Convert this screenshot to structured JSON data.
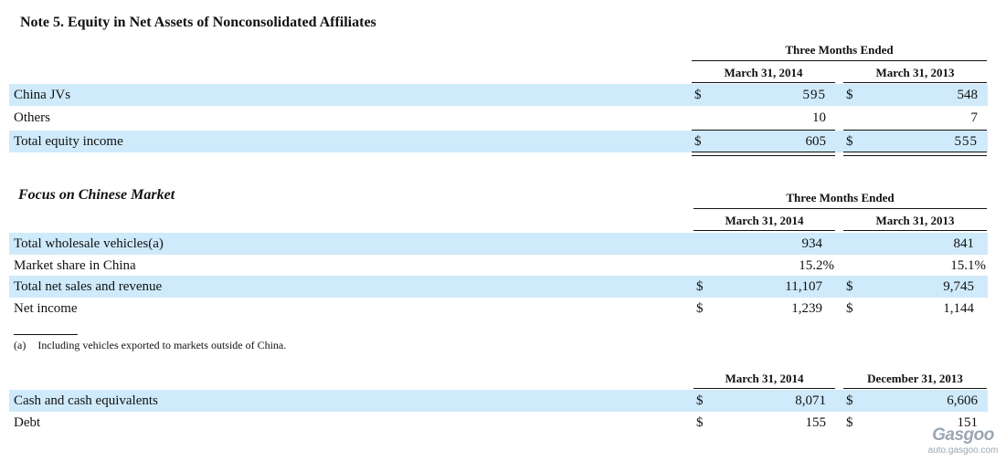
{
  "title": "Note 5. Equity in Net Assets of Nonconsolidated Affiliates",
  "table1": {
    "group_header": "Three Months Ended",
    "col1": "March 31, 2014",
    "col2": "March 31, 2013",
    "rows": [
      {
        "label": "China JVs",
        "cur1": "$",
        "v1": "595",
        "cur2": "$",
        "v2": "548"
      },
      {
        "label": "Others",
        "cur1": "",
        "v1": "10",
        "cur2": "",
        "v2": "7"
      },
      {
        "label": "Total equity income",
        "cur1": "$",
        "v1": "605",
        "cur2": "$",
        "v2": "555"
      }
    ]
  },
  "section2_title": "Focus on Chinese Market",
  "table2": {
    "group_header": "Three Months Ended",
    "col1": "March 31, 2014",
    "col2": "March 31, 2013",
    "rows": [
      {
        "label": "Total wholesale vehicles(a)",
        "cur1": "",
        "v1": "934",
        "cur2": "",
        "v2": "841"
      },
      {
        "label": "Market share in China",
        "cur1": "",
        "v1": "15.2%",
        "cur2": "",
        "v2": "15.1%"
      },
      {
        "label": "Total net sales and revenue",
        "cur1": "$",
        "v1": "11,107",
        "cur2": "$",
        "v2": "9,745"
      },
      {
        "label": "Net income",
        "cur1": "$",
        "v1": "1,239",
        "cur2": "$",
        "v2": "1,144"
      }
    ]
  },
  "footnote": {
    "marker": "(a)",
    "text": "Including vehicles exported to markets outside of China."
  },
  "table3": {
    "col1": "March 31, 2014",
    "col2": "December 31, 2013",
    "rows": [
      {
        "label": "Cash and cash equivalents",
        "cur1": "$",
        "v1": "8,071",
        "cur2": "$",
        "v2": "6,606"
      },
      {
        "label": "Debt",
        "cur1": "$",
        "v1": "155",
        "cur2": "$",
        "v2": "151"
      }
    ]
  },
  "watermark": {
    "logo": "Gasgoo",
    "url": "auto.gasgoo.com"
  },
  "colors": {
    "band": "#cfeafb",
    "text": "#111111"
  }
}
